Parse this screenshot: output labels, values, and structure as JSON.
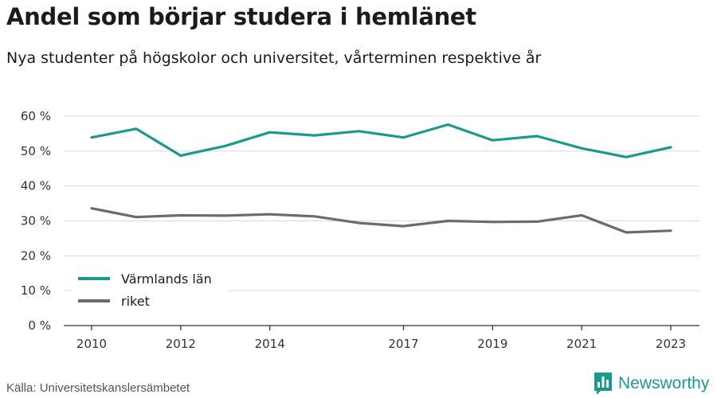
{
  "header": {
    "title": "Andel som börjar studera i hemlänet",
    "subtitle": "Nya studenter på högskolor och universitet, vårterminen respektive år"
  },
  "footer": {
    "source": "Källa: Universitetskanslersämbetet",
    "brand": "Newsworthy",
    "brand_icon": "bar-chart-logo-icon"
  },
  "colors": {
    "accent": "#1a9a8d",
    "secondary": "#6b6b70",
    "grid": "#d9d9d9",
    "axis": "#333333"
  },
  "chart_data": {
    "type": "line",
    "x": [
      2010,
      2011,
      2012,
      2013,
      2014,
      2015,
      2016,
      2017,
      2018,
      2019,
      2020,
      2021,
      2022,
      2023
    ],
    "x_ticks": [
      2010,
      2012,
      2014,
      2017,
      2019,
      2021,
      2023
    ],
    "y_ticks": [
      0,
      10,
      20,
      30,
      40,
      50,
      60
    ],
    "y_tick_labels": [
      "0 %",
      "10 %",
      "20 %",
      "30 %",
      "40 %",
      "50 %",
      "60 %"
    ],
    "ylim": [
      0,
      60
    ],
    "xlim": [
      2010,
      2023
    ],
    "grid": "horizontal",
    "legend_position": "bottom-left",
    "series": [
      {
        "name": "Värmlands län",
        "color": "#1a9a8d",
        "values": [
          53.9,
          56.4,
          48.7,
          51.5,
          55.4,
          54.5,
          55.7,
          53.9,
          57.6,
          53.1,
          54.3,
          50.8,
          48.3,
          51.1
        ]
      },
      {
        "name": "riket",
        "color": "#6b6b70",
        "values": [
          33.6,
          31.1,
          31.6,
          31.5,
          31.9,
          31.3,
          29.4,
          28.5,
          30.0,
          29.7,
          29.8,
          31.6,
          26.7,
          27.2
        ]
      }
    ]
  }
}
